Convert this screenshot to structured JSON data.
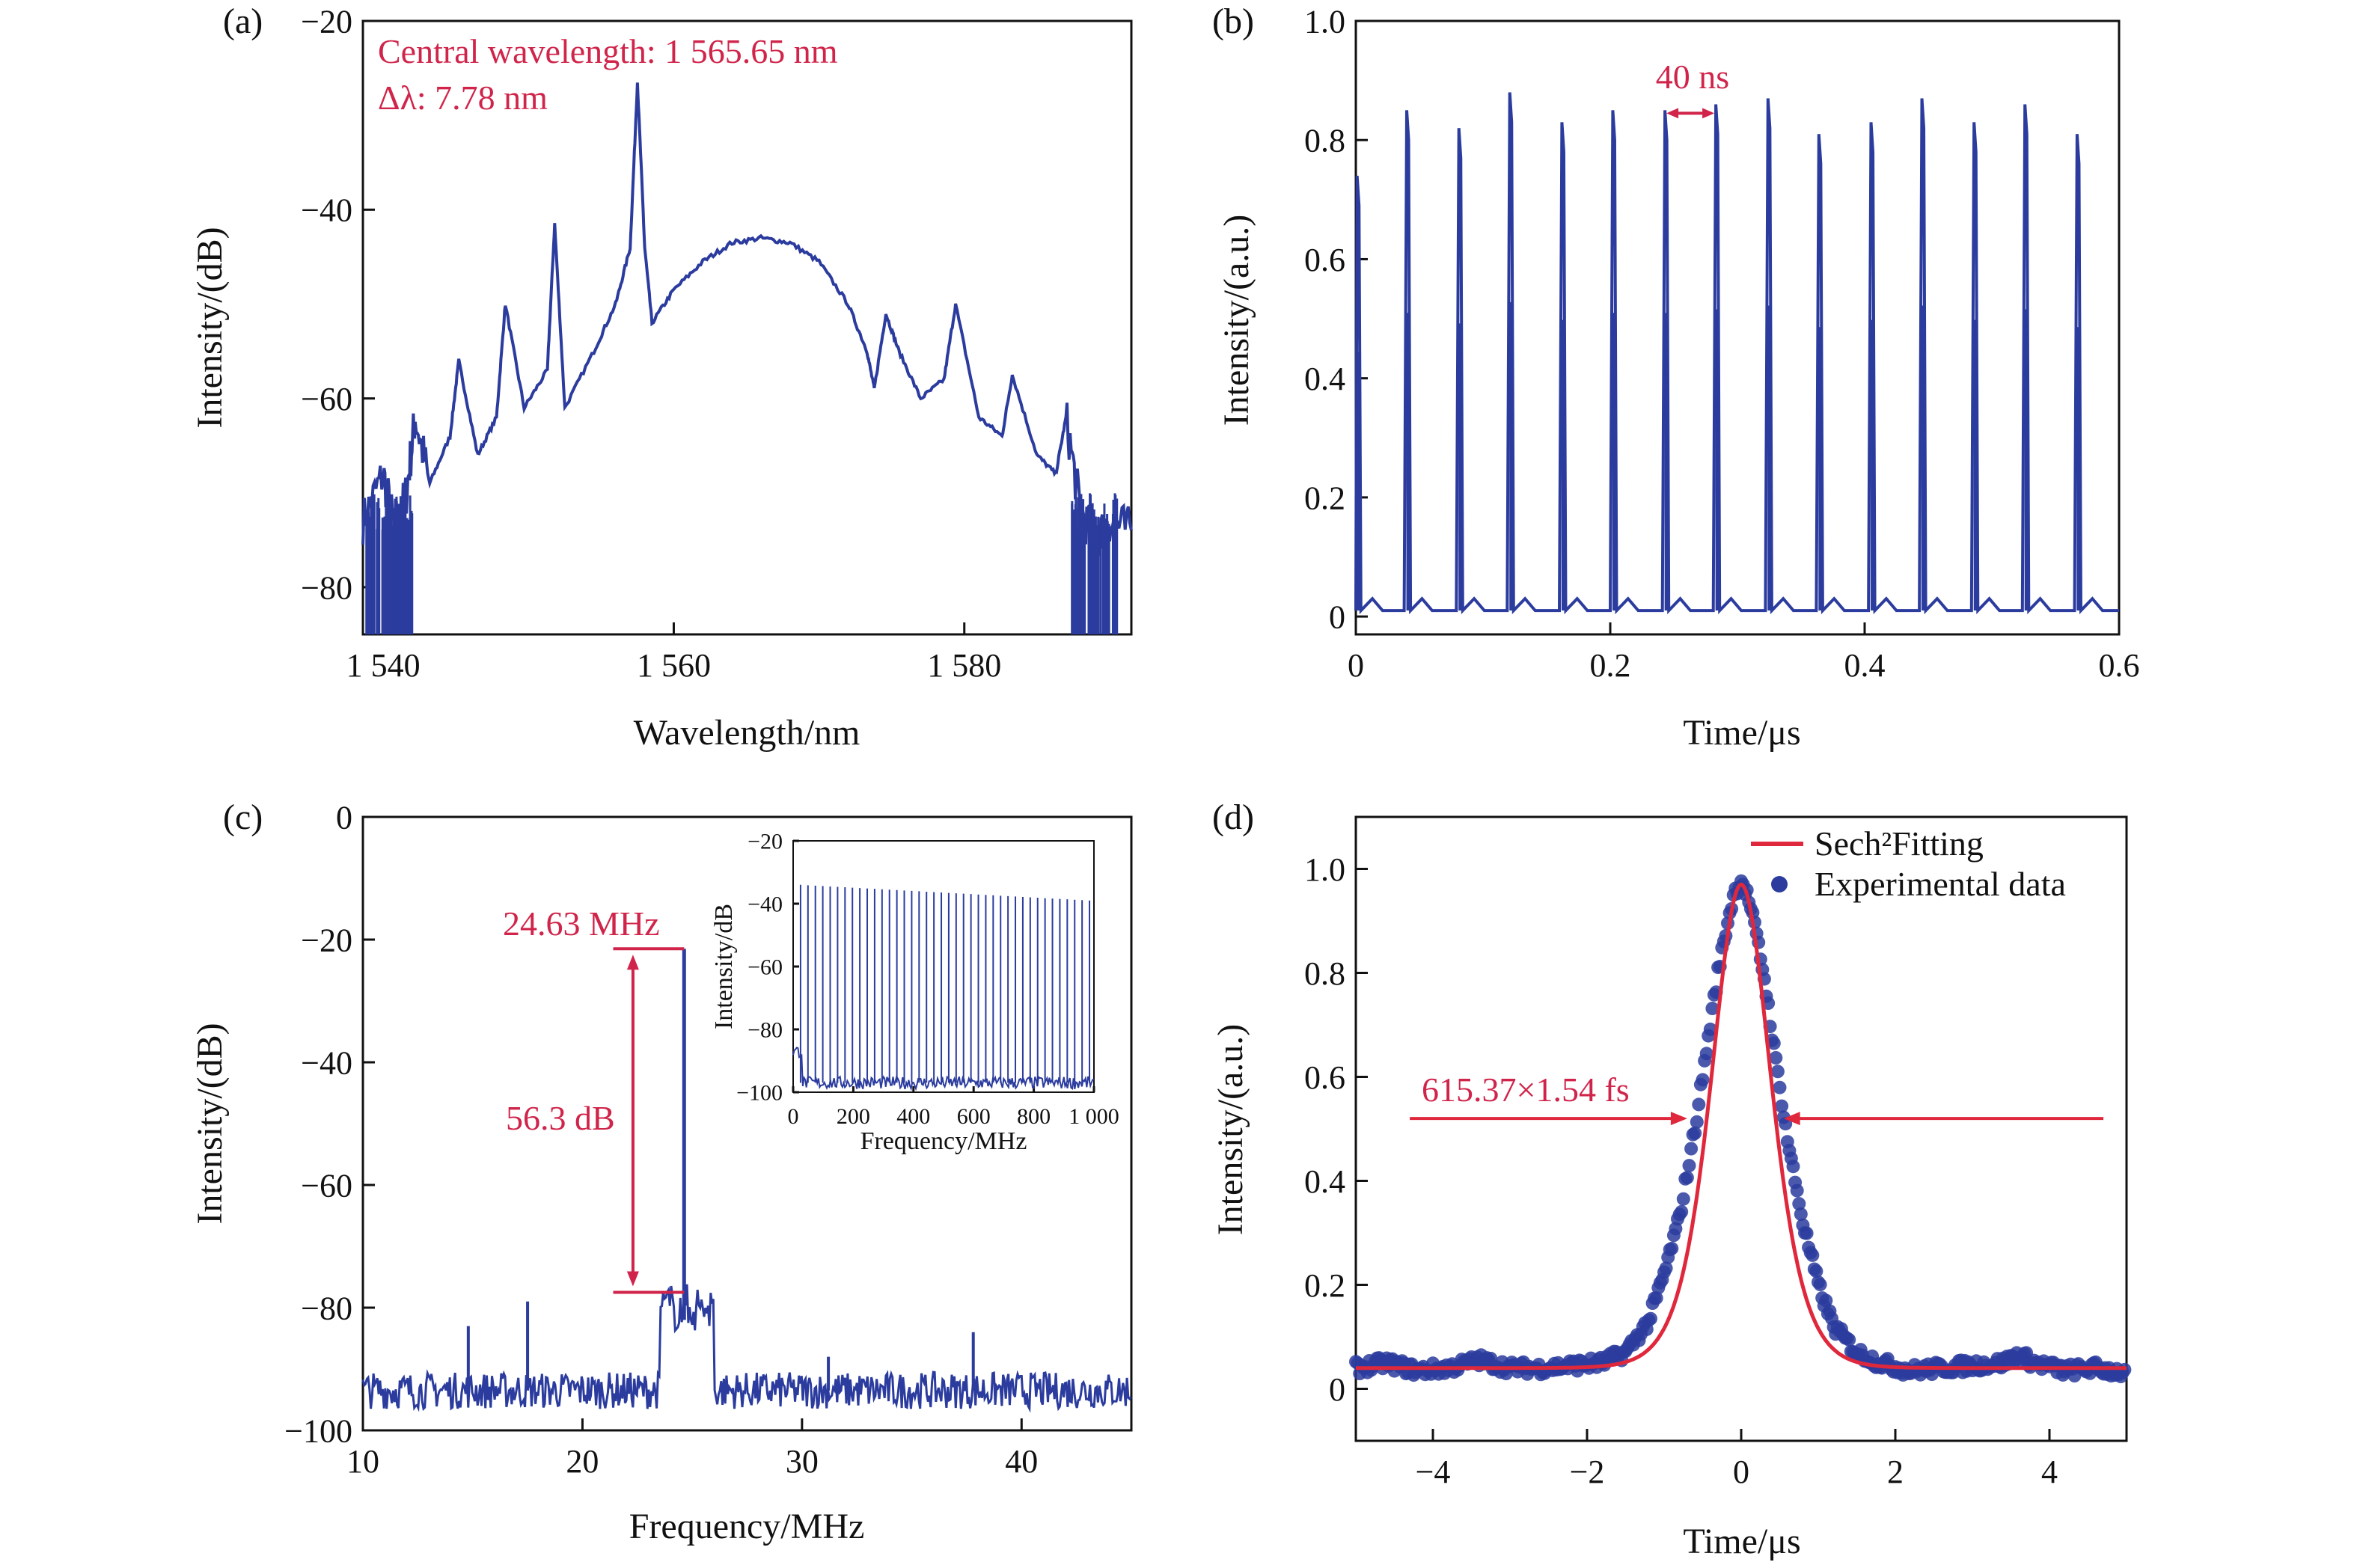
{
  "colors": {
    "trace": "#2b3c9e",
    "fit": "#e0283c",
    "annotation": "#d0244a",
    "axis": "#111111"
  },
  "chart_data": [
    {
      "panel": "(a)",
      "type": "line",
      "xlabel": "Wavelength/nm",
      "ylabel": "Intensity/(dB)",
      "xlim": [
        1538.6,
        1591.5
      ],
      "ylim": [
        -85,
        -20
      ],
      "xticks": [
        1540,
        1560,
        1580
      ],
      "xticklabels": [
        "1 540",
        "1 560",
        "1 580"
      ],
      "yticks": [
        -20,
        -40,
        -60,
        -80
      ],
      "yticklabels": [
        "−20",
        "−40",
        "−60",
        "−80"
      ],
      "annotations": [
        "Central wavelength: 1 565.65 nm",
        "Δλ: 7.78 nm"
      ],
      "series": [
        {
          "x": [
            1538.6,
            1540.0,
            1540.8,
            1541.6,
            1542.2,
            1543.2,
            1544.6,
            1545.2,
            1546.5,
            1547.8,
            1548.4,
            1549.7,
            1551.3,
            1551.8,
            1552.5,
            1554.5,
            1556.0,
            1557.0,
            1557.5,
            1558.0,
            1558.5,
            1560.0,
            1562.0,
            1564.0,
            1566.0,
            1568.0,
            1570.0,
            1572.0,
            1573.3,
            1573.8,
            1574.6,
            1575.5,
            1577.0,
            1578.6,
            1579.4,
            1581.0,
            1582.6,
            1583.3,
            1585.0,
            1586.3,
            1587.0,
            1588.0,
            1589.0,
            1590.0,
            1591.5
          ],
          "y": [
            -73,
            -68,
            -74,
            -70,
            -62,
            -69,
            -64,
            -56,
            -66,
            -62,
            -50,
            -61,
            -57,
            -41.5,
            -61,
            -55,
            -50,
            -44,
            -26.5,
            -44,
            -52,
            -48.5,
            -45.5,
            -43.5,
            -43,
            -43.5,
            -45.5,
            -50,
            -55,
            -59,
            -51,
            -55,
            -60,
            -58,
            -50,
            -62,
            -64,
            -57.5,
            -66,
            -68,
            -62,
            -72,
            -75,
            -73,
            -74
          ]
        }
      ]
    },
    {
      "panel": "(b)",
      "type": "line",
      "xlabel": "Time/μs",
      "ylabel": "Intensity/(a.u.)",
      "xlim": [
        0,
        0.6
      ],
      "ylim": [
        -0.03,
        1.0
      ],
      "xticks": [
        0,
        0.2,
        0.4,
        0.6
      ],
      "xticklabels": [
        "0",
        "0.2",
        "0.4",
        "0.6"
      ],
      "yticks": [
        0,
        0.2,
        0.4,
        0.6,
        0.8,
        1.0
      ],
      "yticklabels": [
        "0",
        "0.2",
        "0.4",
        "0.6",
        "0.8",
        "1.0"
      ],
      "annotations": [
        "40 ns"
      ],
      "baseline": 0.01,
      "pulses": {
        "t": [
          0.001,
          0.04,
          0.081,
          0.121,
          0.162,
          0.202,
          0.243,
          0.283,
          0.324,
          0.364,
          0.405,
          0.445,
          0.486,
          0.526,
          0.567
        ],
        "peak": [
          0.74,
          0.85,
          0.82,
          0.88,
          0.83,
          0.85,
          0.85,
          0.86,
          0.87,
          0.81,
          0.83,
          0.87,
          0.83,
          0.86,
          0.81
        ]
      }
    },
    {
      "panel": "(c)",
      "type": "line",
      "xlabel": "Frequency/MHz",
      "ylabel": "Intensity/(dB)",
      "xlim": [
        10,
        45
      ],
      "ylim": [
        -100,
        0
      ],
      "xticks": [
        10,
        20,
        30,
        40
      ],
      "xticklabels": [
        "10",
        "20",
        "30",
        "40"
      ],
      "yticks": [
        0,
        -20,
        -40,
        -60,
        -80,
        -100
      ],
      "yticklabels": [
        "0",
        "−20",
        "−40",
        "−60",
        "−80",
        "−100"
      ],
      "annotations": [
        "24.63 MHz",
        "56.3 dB"
      ],
      "noise_floor": -93.5,
      "peak": {
        "x": 24.63,
        "y": -21.5
      },
      "pedestal_level": -77.5,
      "spurs": [
        {
          "x": 14.8,
          "y": -83
        },
        {
          "x": 17.5,
          "y": -79
        },
        {
          "x": 31.2,
          "y": -88
        },
        {
          "x": 37.8,
          "y": -84
        }
      ],
      "inset": {
        "xlabel": "Frequency/MHz",
        "ylabel": "Intensity/dB",
        "xlim": [
          0,
          1000
        ],
        "ylim": [
          -100,
          -20
        ],
        "xticks": [
          0,
          200,
          400,
          600,
          800,
          1000
        ],
        "xticklabels": [
          "0",
          "200",
          "400",
          "600",
          "800",
          "1 000"
        ],
        "yticks": [
          -20,
          -40,
          -60,
          -80,
          -100
        ],
        "yticklabels": [
          "−20",
          "−40",
          "−60",
          "−80",
          "−100"
        ],
        "spacing": 24.63,
        "first_harmonic_dB": -34,
        "last_harmonic_dB": -39,
        "floor_dB": -97
      }
    },
    {
      "panel": "(d)",
      "type": "scatter",
      "xlabel": "Time/μs",
      "ylabel": "Intensity/(a.u.)",
      "xlim": [
        -5,
        5
      ],
      "ylim": [
        -0.1,
        1.1
      ],
      "xticks": [
        -4,
        -2,
        0,
        2,
        4
      ],
      "xticklabels": [
        "−4",
        "−2",
        "0",
        "2",
        "4"
      ],
      "yticks": [
        0,
        0.2,
        0.4,
        0.6,
        0.8,
        1.0
      ],
      "yticklabels": [
        "0",
        "0.2",
        "0.4",
        "0.6",
        "0.8",
        "1.0"
      ],
      "annotations": [
        "615.37×1.54 fs"
      ],
      "legend": [
        "Sech²Fitting",
        "Experimental data"
      ],
      "legend_position": "top-right",
      "fit": {
        "amplitude": 0.93,
        "width": 0.52,
        "offset": 0.04
      },
      "series": [
        {
          "name": "Experimental data",
          "x": [
            -5.0,
            -4.6,
            -4.2,
            -3.8,
            -3.4,
            -3.0,
            -2.6,
            -2.2,
            -1.8,
            -1.5,
            -1.2,
            -1.0,
            -0.8,
            -0.6,
            -0.4,
            -0.3,
            -0.2,
            -0.1,
            0.0,
            0.1,
            0.2,
            0.3,
            0.4,
            0.6,
            0.8,
            1.0,
            1.2,
            1.5,
            1.8,
            2.2,
            2.6,
            3.0,
            3.4,
            3.6,
            3.8,
            4.2,
            4.6,
            5.0
          ],
          "y": [
            0.04,
            0.05,
            0.035,
            0.04,
            0.055,
            0.04,
            0.04,
            0.045,
            0.05,
            0.07,
            0.13,
            0.22,
            0.33,
            0.5,
            0.7,
            0.8,
            0.88,
            0.95,
            0.98,
            0.94,
            0.87,
            0.79,
            0.68,
            0.48,
            0.32,
            0.2,
            0.12,
            0.07,
            0.05,
            0.035,
            0.04,
            0.045,
            0.05,
            0.065,
            0.05,
            0.035,
            0.04,
            0.03
          ]
        }
      ]
    }
  ]
}
